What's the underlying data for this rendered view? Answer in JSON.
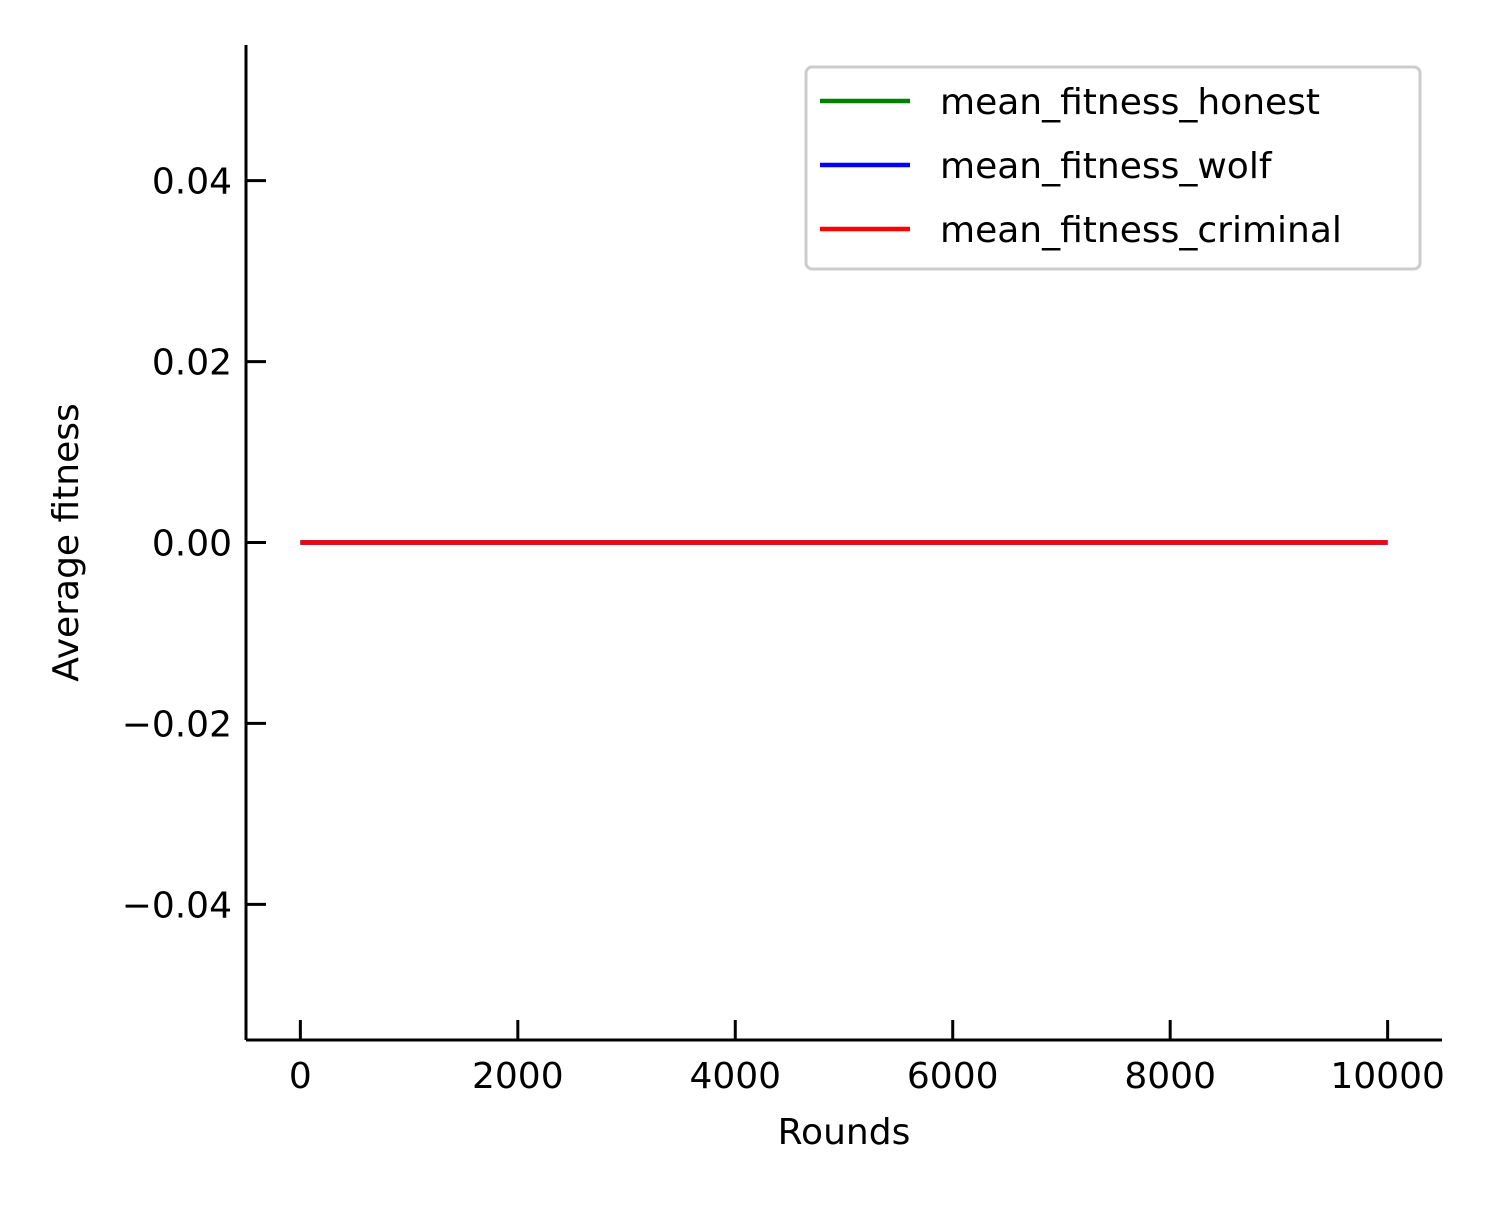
{
  "chart_data": {
    "type": "line",
    "xlabel": "Rounds",
    "ylabel": "Average fitness",
    "xlim": [
      -500,
      10500
    ],
    "ylim": [
      -0.055,
      0.055
    ],
    "x_ticks": [
      0,
      2000,
      4000,
      6000,
      8000,
      10000
    ],
    "x_tick_labels": [
      "0",
      "2000",
      "4000",
      "6000",
      "8000",
      "10000"
    ],
    "y_ticks": [
      -0.04,
      -0.02,
      0.0,
      0.02,
      0.04
    ],
    "y_tick_labels": [
      "−0.04",
      "−0.02",
      "0.00",
      "0.02",
      "0.04"
    ],
    "grid": false,
    "legend_position": "top-right",
    "series": [
      {
        "name": "mean_fitness_honest",
        "color": "#008000",
        "x": [
          0,
          10000
        ],
        "y": [
          0,
          0
        ]
      },
      {
        "name": "mean_fitness_wolf",
        "color": "#0000ff",
        "x": [
          0,
          10000
        ],
        "y": [
          0,
          0
        ]
      },
      {
        "name": "mean_fitness_criminal",
        "color": "#ff0000",
        "x": [
          0,
          10000
        ],
        "y": [
          0,
          0
        ]
      }
    ]
  }
}
